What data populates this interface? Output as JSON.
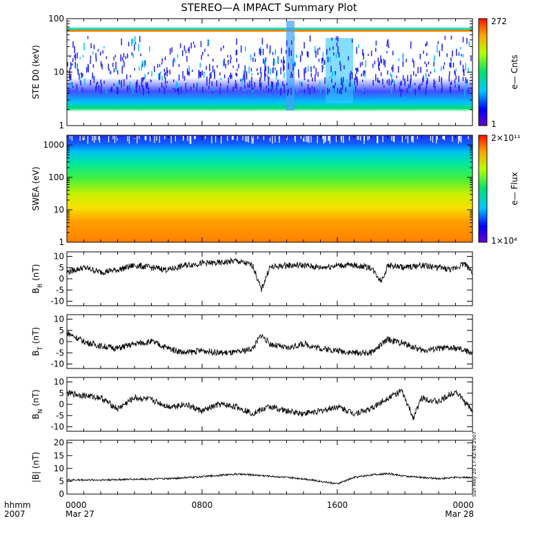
{
  "title": "STEREO—A IMPACT Summary Plot",
  "time_axis": {
    "row_label": "hhmm",
    "year": "2007",
    "ticks": [
      {
        "hour": 0,
        "label": "0000",
        "date": "Mar 27"
      },
      {
        "hour": 8,
        "label": "0800",
        "date": ""
      },
      {
        "hour": 16,
        "label": "1600",
        "date": ""
      },
      {
        "hour": 24,
        "label": "0000",
        "date": "Mar 28"
      }
    ],
    "range_hours": [
      0,
      24
    ]
  },
  "timestamp": "Sun May 20 17:42:40 2007",
  "chart_data": [
    {
      "type": "heatmap",
      "ylabel": "STE D0 (keV)",
      "yscale": "log",
      "ylim": [
        1,
        100
      ],
      "yticks": [
        "1",
        "10",
        "100"
      ],
      "colorbar": {
        "label": "e— Cnts",
        "max": "272",
        "min": "1"
      },
      "features": "background population 2–5 keV; narrow band near 60 keV; enhancements near 1200 and 1500"
    },
    {
      "type": "heatmap",
      "ylabel": "SWEA (eV)",
      "yscale": "log",
      "ylim": [
        1,
        2000
      ],
      "yticks": [
        "1",
        "10",
        "100",
        "1000"
      ],
      "colorbar": {
        "label": "e— Flux",
        "max": "2×10¹¹",
        "min": "1×10⁴"
      }
    },
    {
      "type": "line",
      "ylabel": "B",
      "ylabel_sub": "R",
      "ylabel_unit": "(nT)",
      "ylim": [
        -12,
        12
      ],
      "yticks": [
        -10,
        -5,
        0,
        5,
        10
      ],
      "series": [
        {
          "x": [
            0,
            1,
            2,
            3,
            4,
            5,
            6,
            7,
            8,
            9,
            10,
            11,
            11.5,
            12,
            13,
            14,
            15,
            16,
            17,
            18,
            18.6,
            19,
            20,
            21,
            22,
            22.8,
            23.5,
            24
          ],
          "values": [
            3,
            5,
            3,
            4,
            6,
            5,
            4,
            6,
            7,
            7,
            8,
            6,
            -5,
            5,
            6,
            6,
            5,
            6,
            6,
            5,
            -1,
            6,
            5,
            6,
            5,
            4,
            7,
            3
          ]
        }
      ]
    },
    {
      "type": "line",
      "ylabel": "B",
      "ylabel_sub": "T",
      "ylabel_unit": "(nT)",
      "ylim": [
        -12,
        12
      ],
      "yticks": [
        -10,
        -5,
        0,
        5,
        10
      ],
      "series": [
        {
          "x": [
            0,
            1,
            2,
            3,
            4,
            5,
            6,
            7,
            8,
            9,
            10,
            11,
            11.5,
            12,
            13,
            14,
            15,
            16,
            17,
            18,
            19,
            20,
            21,
            22,
            23,
            24
          ],
          "values": [
            4,
            0,
            -2,
            -3,
            -1,
            0,
            -3,
            -5,
            -4,
            -5,
            -5,
            -3,
            3,
            -1,
            -3,
            -1,
            -3,
            -4,
            -5,
            -5,
            1,
            -1,
            -4,
            -3,
            -3,
            -5
          ]
        }
      ]
    },
    {
      "type": "line",
      "ylabel": "B",
      "ylabel_sub": "N",
      "ylabel_unit": "(nT)",
      "ylim": [
        -12,
        12
      ],
      "yticks": [
        -10,
        -5,
        0,
        5,
        10
      ],
      "series": [
        {
          "x": [
            0,
            1,
            2,
            3,
            4,
            5,
            6,
            7,
            8,
            9,
            10,
            11,
            12,
            13,
            14,
            15,
            16,
            17,
            18,
            19,
            19.8,
            20.5,
            21,
            22,
            23,
            24
          ],
          "values": [
            5,
            4,
            3,
            -2,
            3,
            2,
            -1,
            0,
            -3,
            0,
            -1,
            -4,
            -1,
            -3,
            -4,
            -3,
            -1,
            -4,
            -2,
            3,
            6,
            -6,
            3,
            1,
            6,
            -3
          ]
        }
      ]
    },
    {
      "type": "line",
      "ylabel": "|B| (nT)",
      "ylim": [
        0,
        21
      ],
      "yticks": [
        0,
        5,
        10,
        15,
        20
      ],
      "series": [
        {
          "x": [
            0,
            2,
            4,
            6,
            8,
            10,
            11,
            12,
            13,
            14,
            15,
            16,
            17,
            18,
            19,
            20,
            21,
            22,
            23,
            24
          ],
          "values": [
            5.5,
            5.5,
            5.8,
            6,
            6.8,
            7.8,
            7.5,
            7,
            6.5,
            6,
            5,
            4,
            6.5,
            7.5,
            8,
            7,
            6.5,
            6,
            6.5,
            6.5
          ]
        }
      ]
    }
  ]
}
